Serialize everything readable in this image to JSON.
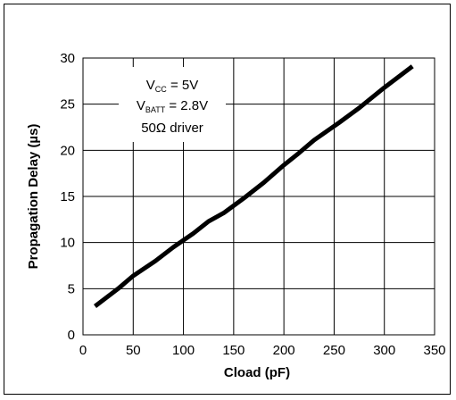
{
  "chart_data": {
    "type": "line",
    "xlabel": "Cload (pF)",
    "ylabel": "Propagation Delay (µs)",
    "xlim": [
      0,
      350
    ],
    "ylim": [
      0,
      30
    ],
    "xticks": [
      0,
      50,
      100,
      150,
      200,
      250,
      300,
      350
    ],
    "yticks": [
      0,
      5,
      10,
      15,
      20,
      25,
      30
    ],
    "grid": true,
    "series": [
      {
        "x": [
          12,
          35,
          50,
          72,
          90,
          110,
          125,
          140,
          160,
          180,
          200,
          215,
          230,
          255,
          275,
          300,
          328
        ],
        "y": [
          3.1,
          5.0,
          6.4,
          8.0,
          9.5,
          11.0,
          12.3,
          13.2,
          14.8,
          16.5,
          18.4,
          19.7,
          21.1,
          23.0,
          24.6,
          26.8,
          29.1
        ]
      }
    ],
    "annotation": {
      "line1": {
        "main": "V",
        "sub": "CC",
        "rest": " = 5V"
      },
      "line2": {
        "main": "V",
        "sub": "BATT",
        "rest": " = 2.8V"
      },
      "line3": "50Ω driver"
    },
    "color": "#000000"
  }
}
